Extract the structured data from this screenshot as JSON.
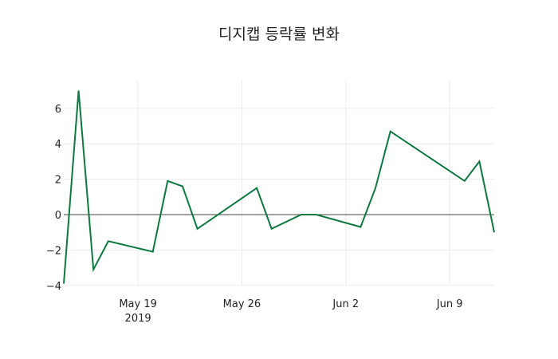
{
  "chart_data": {
    "type": "line",
    "title": "디지캡 등락률 변화",
    "xlabel": "",
    "ylabel": "",
    "x": [
      "2019-05-14",
      "2019-05-15",
      "2019-05-16",
      "2019-05-17",
      "2019-05-20",
      "2019-05-21",
      "2019-05-22",
      "2019-05-23",
      "2019-05-27",
      "2019-05-28",
      "2019-05-30",
      "2019-05-31",
      "2019-06-03",
      "2019-06-04",
      "2019-06-05",
      "2019-06-10",
      "2019-06-11",
      "2019-06-12"
    ],
    "series": [
      {
        "name": "등락률",
        "color": "#0b7a3e",
        "values": [
          -3.9,
          7.0,
          -3.1,
          -1.5,
          -2.1,
          1.9,
          1.6,
          -0.8,
          1.5,
          -0.8,
          0.0,
          0.0,
          -0.7,
          1.5,
          4.7,
          1.9,
          3.0,
          -1.0
        ]
      }
    ],
    "ylim": [
      -4,
      7.5
    ],
    "xlim": [
      "2019-05-14",
      "2019-06-12"
    ],
    "y_ticks": [
      -4,
      -2,
      0,
      2,
      4,
      6
    ],
    "y_tick_labels": [
      "−4",
      "−2",
      "0",
      "2",
      "4",
      "6"
    ],
    "x_ticks": [
      "2019-05-19",
      "2019-05-26",
      "2019-06-02",
      "2019-06-09"
    ],
    "x_tick_labels": [
      "May 19",
      "May 26",
      "Jun 2",
      "Jun 9"
    ],
    "x_tick_sublabel": "2019",
    "grid": true,
    "zero_line": true
  }
}
